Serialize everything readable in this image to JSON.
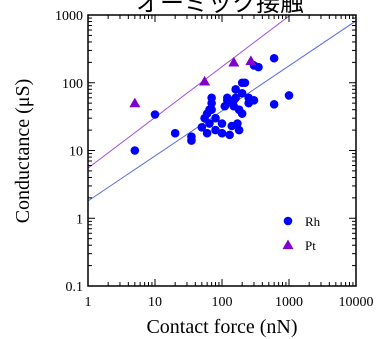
{
  "chart_data": {
    "type": "scatter",
    "title": "オーミック接触",
    "xlabel": "Contact force (nN)",
    "ylabel": "Conductance (μS)",
    "x_scale": "log",
    "y_scale": "log",
    "xlim": [
      1,
      10000
    ],
    "ylim": [
      0.1,
      1000
    ],
    "x_ticks": [
      "1",
      "10",
      "100",
      "1000",
      "10000"
    ],
    "y_ticks": [
      "0.1",
      "1",
      "10",
      "100",
      "1000"
    ],
    "grid": false,
    "legend": "bottom-right",
    "series": [
      {
        "name": "Rh",
        "marker": "circle",
        "color": "#0000ff",
        "x": [
          5,
          10,
          20,
          35,
          35,
          50,
          55,
          60,
          60,
          65,
          65,
          70,
          70,
          70,
          80,
          80,
          100,
          100,
          110,
          120,
          120,
          130,
          140,
          140,
          150,
          150,
          160,
          160,
          170,
          180,
          180,
          200,
          200,
          200,
          220,
          250,
          250,
          300,
          300,
          350,
          600,
          600,
          1000
        ],
        "y": [
          10,
          34,
          18,
          14,
          16,
          22,
          30,
          18,
          35,
          25,
          40,
          50,
          60,
          40,
          30,
          20,
          18,
          25,
          45,
          55,
          60,
          17,
          23,
          50,
          45,
          55,
          60,
          80,
          25,
          40,
          20,
          100,
          70,
          35,
          100,
          50,
          60,
          55,
          180,
          170,
          230,
          48,
          65
        ]
      },
      {
        "name": "Pt",
        "marker": "triangle",
        "color": "#8000cc",
        "x": [
          5,
          55,
          150,
          270
        ],
        "y": [
          50,
          105,
          200,
          210
        ]
      }
    ],
    "fit_lines": [
      {
        "series": "Pt",
        "color": "#a050e0",
        "x": [
          1,
          1050
        ],
        "y": [
          5.5,
          1000
        ]
      },
      {
        "series": "Rh",
        "color": "#5b6fe0",
        "x": [
          1,
          10000
        ],
        "y": [
          1.8,
          820
        ]
      }
    ]
  }
}
